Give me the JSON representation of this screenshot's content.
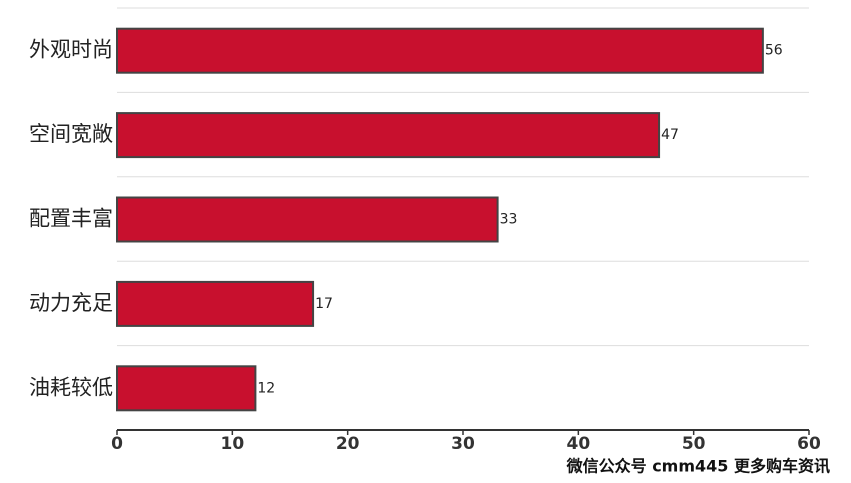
{
  "chart_data": {
    "type": "bar",
    "orientation": "horizontal",
    "categories": [
      "外观时尚",
      "空间宽敞",
      "配置丰富",
      "动力充足",
      "油耗较低"
    ],
    "values": [
      56,
      47,
      33,
      17,
      12
    ],
    "color": "#c8102e",
    "xlim": [
      0,
      60
    ],
    "xticks": [
      0,
      10,
      20,
      30,
      40,
      50,
      60
    ],
    "grid": false,
    "annotation": "微信公众号 cmm445 更多购车资讯"
  }
}
